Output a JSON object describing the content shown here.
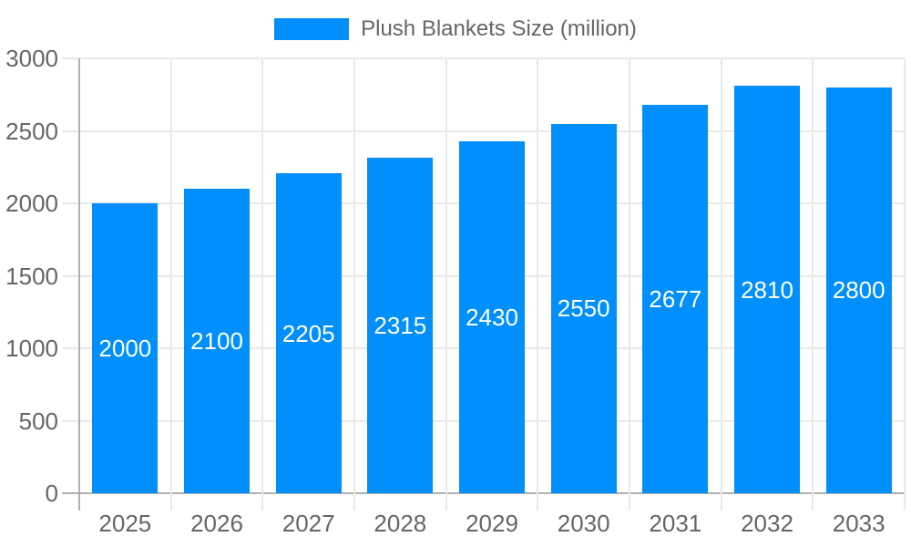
{
  "legend": {
    "label": "Plush Blankets Size (million)"
  },
  "chart_data": {
    "type": "bar",
    "title": "Plush Blankets Size (million)",
    "categories": [
      "2025",
      "2026",
      "2027",
      "2028",
      "2029",
      "2030",
      "2031",
      "2032",
      "2033"
    ],
    "series": [
      {
        "name": "Plush Blankets Size (million)",
        "values": [
          2000,
          2100,
          2205,
          2315,
          2430,
          2550,
          2677,
          2810,
          2800
        ]
      }
    ],
    "xlabel": "",
    "ylabel": "",
    "ylim": [
      0,
      3000
    ],
    "yticks": [
      0,
      500,
      1000,
      1500,
      2000,
      2500,
      3000
    ],
    "grid": true,
    "legend_position": "top",
    "colors": {
      "bar": "#008FFB",
      "grid": "#e9e9e9",
      "axis": "#b1b1b1",
      "tick_text": "#666666",
      "value_label_text": "#ffffff",
      "background": "#ffffff"
    }
  }
}
